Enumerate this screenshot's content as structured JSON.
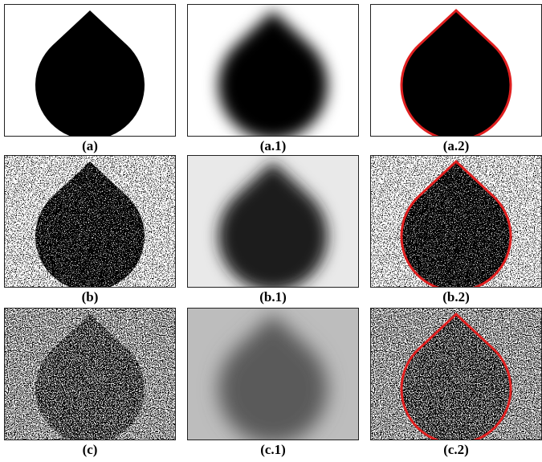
{
  "rows": [
    [
      "(a)",
      "(a.1)",
      "(a.2)"
    ],
    [
      "(b)",
      "(b.1)",
      "(b.2)"
    ],
    [
      "(c)",
      "(c.1)",
      "(c.2)"
    ]
  ]
}
